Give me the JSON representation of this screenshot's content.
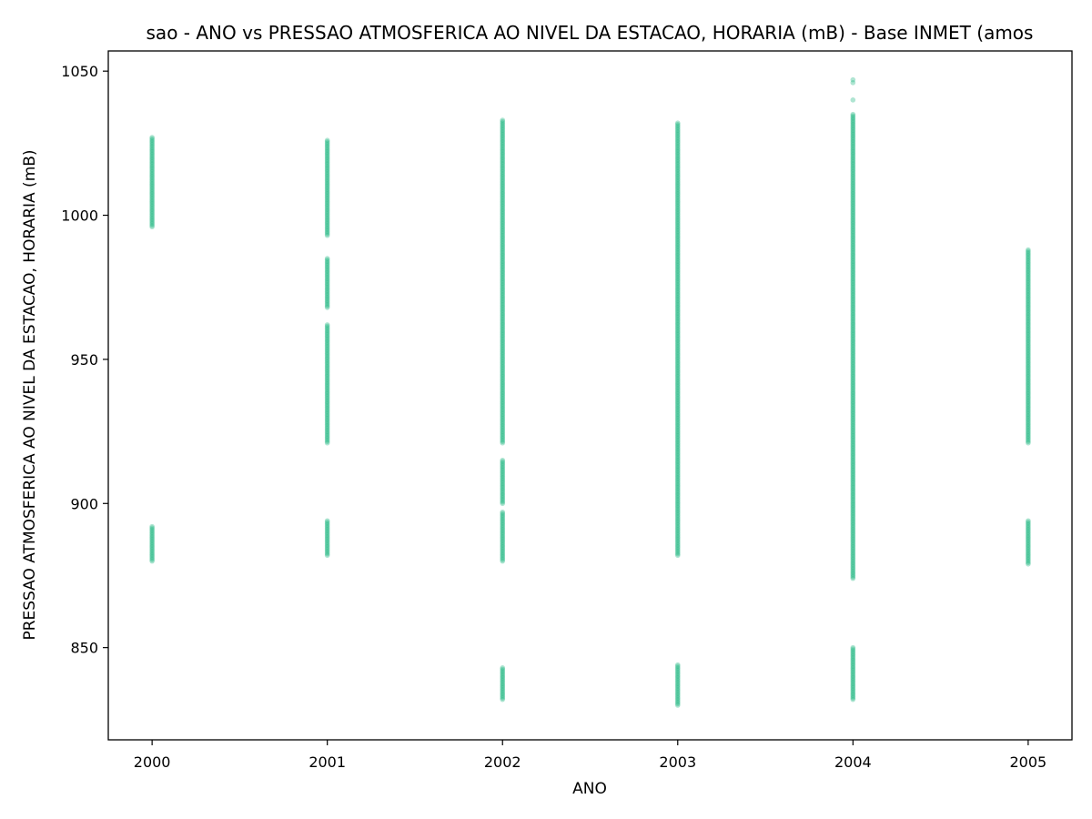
{
  "chart_data": {
    "type": "scatter",
    "title": "sao - ANO vs PRESSAO ATMOSFERICA AO NIVEL DA ESTACAO, HORARIA (mB) - Base INMET (amos",
    "xlabel": "ANO",
    "ylabel": "PRESSAO ATMOSFERICA AO NIVEL DA ESTACAO, HORARIA (mB)",
    "x_ticks": [
      "2000",
      "2001",
      "2002",
      "2003",
      "2004",
      "2005"
    ],
    "y_ticks": [
      850,
      900,
      950,
      1000,
      1050
    ],
    "xlim": [
      1999.75,
      2005.25
    ],
    "ylim": [
      818,
      1057
    ],
    "grid": false,
    "point_color": "#1bb57d",
    "point_alpha": 0.35,
    "series": [
      {
        "values_by_year": [
          {
            "x": 2000,
            "ranges": [
              [
                996,
                1027
              ],
              [
                880,
                892
              ]
            ]
          },
          {
            "x": 2001,
            "ranges": [
              [
                993,
                1026
              ],
              [
                968,
                985
              ],
              [
                921,
                962
              ],
              [
                882,
                894
              ]
            ]
          },
          {
            "x": 2002,
            "ranges": [
              [
                921,
                1033
              ],
              [
                900,
                915
              ],
              [
                880,
                897
              ],
              [
                832,
                843
              ]
            ]
          },
          {
            "x": 2003,
            "ranges": [
              [
                882,
                1032
              ],
              [
                830,
                844
              ]
            ]
          },
          {
            "x": 2004,
            "ranges": [
              [
                874,
                1035
              ],
              [
                832,
                850
              ]
            ],
            "outliers": [
              1040,
              1046,
              1047
            ]
          },
          {
            "x": 2005,
            "ranges": [
              [
                921,
                988
              ],
              [
                879,
                894
              ]
            ]
          }
        ]
      }
    ]
  }
}
